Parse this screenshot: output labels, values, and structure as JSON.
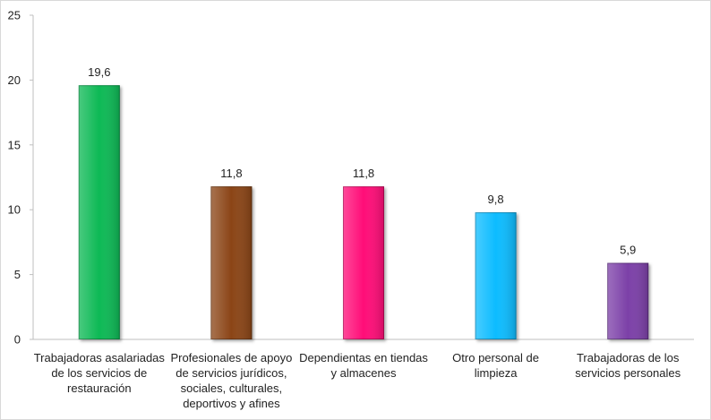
{
  "chart_data": {
    "type": "bar",
    "title": "",
    "xlabel": "",
    "ylabel": "",
    "ylim": [
      0,
      25
    ],
    "yticks": [
      0,
      5,
      10,
      15,
      20,
      25
    ],
    "grid": false,
    "legend": "none",
    "categories": [
      "Trabajadoras asalariadas de los servicios de restauración",
      "Profesionales de apoyo de servicios jurídicos, sociales, culturales, deportivos y afines",
      "Dependientas en tiendas y almacenes",
      "Otro personal de limpieza",
      "Trabajadoras de los servicios personales"
    ],
    "category_lines": [
      [
        "Trabajadoras asalariadas",
        "de los servicios de",
        "restauración"
      ],
      [
        "Profesionales de apoyo",
        "de servicios jurídicos,",
        "sociales, culturales,",
        "deportivos y afines"
      ],
      [
        "Dependientas en tiendas",
        "y almacenes"
      ],
      [
        "Otro personal de",
        "limpieza"
      ],
      [
        "Trabajadoras de los",
        "servicios personales"
      ]
    ],
    "values": [
      19.6,
      11.8,
      11.8,
      9.8,
      5.9
    ],
    "value_labels": [
      "19,6",
      "11,8",
      "11,8",
      "9,8",
      "5,9"
    ],
    "colors": [
      "#0bb954",
      "#8b4513",
      "#ff0a78",
      "#0bbcff",
      "#7b3fa8"
    ]
  }
}
